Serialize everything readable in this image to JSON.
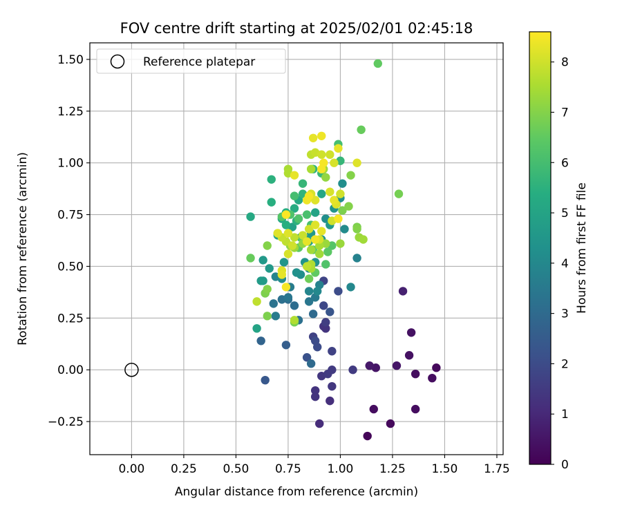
{
  "chart_data": {
    "type": "scatter",
    "title": "FOV centre drift starting at 2025/02/01 02:45:18",
    "xlabel": "Angular distance from reference (arcmin)",
    "ylabel": "Rotation from reference (arcmin)",
    "xlim": [
      -0.2,
      1.78
    ],
    "ylim": [
      -0.41,
      1.58
    ],
    "xticks": [
      0.0,
      0.25,
      0.5,
      0.75,
      1.0,
      1.25,
      1.5,
      1.75
    ],
    "xtick_labels": [
      "0.00",
      "0.25",
      "0.50",
      "0.75",
      "1.00",
      "1.25",
      "1.50",
      "1.75"
    ],
    "yticks": [
      -0.25,
      0.0,
      0.25,
      0.5,
      0.75,
      1.0,
      1.25,
      1.5
    ],
    "ytick_labels": [
      "−0.25",
      "0.00",
      "0.25",
      "0.50",
      "0.75",
      "1.00",
      "1.25",
      "1.50"
    ],
    "grid": true,
    "colormap": "viridis",
    "colorbar": {
      "label": "Hours from first FF file",
      "range": [
        0,
        8.6
      ],
      "ticks": [
        0,
        1,
        2,
        3,
        4,
        5,
        6,
        7,
        8
      ],
      "tick_labels": [
        "0",
        "1",
        "2",
        "3",
        "4",
        "5",
        "6",
        "7",
        "8"
      ]
    },
    "legend": {
      "location": "upper-left",
      "entries": [
        "Reference platepar"
      ]
    },
    "reference_point": {
      "x": 0.0,
      "y": 0.0,
      "marker": "open-circle",
      "label": "Reference platepar"
    },
    "series": [
      {
        "note_color": "points coloured by hours from first FF file",
        "points": [
          {
            "x": 1.13,
            "y": -0.32,
            "c": 0.1
          },
          {
            "x": 1.24,
            "y": -0.26,
            "c": 0.2
          },
          {
            "x": 1.16,
            "y": -0.19,
            "c": 0.3
          },
          {
            "x": 1.36,
            "y": -0.19,
            "c": 0.3
          },
          {
            "x": 1.46,
            "y": 0.01,
            "c": 0.2
          },
          {
            "x": 1.44,
            "y": -0.04,
            "c": 0.3
          },
          {
            "x": 1.36,
            "y": -0.02,
            "c": 0.3
          },
          {
            "x": 1.33,
            "y": 0.07,
            "c": 0.4
          },
          {
            "x": 1.34,
            "y": 0.18,
            "c": 0.4
          },
          {
            "x": 1.27,
            "y": 0.02,
            "c": 0.5
          },
          {
            "x": 1.17,
            "y": 0.01,
            "c": 0.5
          },
          {
            "x": 1.14,
            "y": 0.02,
            "c": 0.6
          },
          {
            "x": 1.3,
            "y": 0.38,
            "c": 0.8
          },
          {
            "x": 0.9,
            "y": -0.26,
            "c": 1.1
          },
          {
            "x": 0.95,
            "y": -0.15,
            "c": 1.2
          },
          {
            "x": 0.88,
            "y": -0.13,
            "c": 1.3
          },
          {
            "x": 0.88,
            "y": -0.1,
            "c": 1.3
          },
          {
            "x": 0.96,
            "y": -0.08,
            "c": 1.4
          },
          {
            "x": 0.91,
            "y": -0.03,
            "c": 1.4
          },
          {
            "x": 0.94,
            "y": -0.02,
            "c": 1.5
          },
          {
            "x": 0.96,
            "y": 0.0,
            "c": 1.5
          },
          {
            "x": 1.06,
            "y": 0.0,
            "c": 1.5
          },
          {
            "x": 0.93,
            "y": 0.2,
            "c": 1.3
          },
          {
            "x": 0.92,
            "y": 0.21,
            "c": 1.3
          },
          {
            "x": 0.93,
            "y": 0.23,
            "c": 1.6
          },
          {
            "x": 0.87,
            "y": 0.16,
            "c": 1.7
          },
          {
            "x": 0.96,
            "y": 0.09,
            "c": 1.7
          },
          {
            "x": 0.89,
            "y": 0.11,
            "c": 2.0
          },
          {
            "x": 0.88,
            "y": 0.14,
            "c": 2.0
          },
          {
            "x": 0.84,
            "y": 0.06,
            "c": 2.2
          },
          {
            "x": 0.92,
            "y": 0.31,
            "c": 1.9
          },
          {
            "x": 0.92,
            "y": 0.43,
            "c": 1.8
          },
          {
            "x": 0.99,
            "y": 0.38,
            "c": 2.0
          },
          {
            "x": 0.95,
            "y": 0.28,
            "c": 2.3
          },
          {
            "x": 0.64,
            "y": -0.05,
            "c": 2.4
          },
          {
            "x": 0.74,
            "y": 0.12,
            "c": 2.6
          },
          {
            "x": 0.62,
            "y": 0.14,
            "c": 2.8
          },
          {
            "x": 0.86,
            "y": 0.03,
            "c": 3.0
          },
          {
            "x": 0.87,
            "y": 0.27,
            "c": 3.0
          },
          {
            "x": 0.78,
            "y": 0.31,
            "c": 3.1
          },
          {
            "x": 0.75,
            "y": 0.34,
            "c": 3.1
          },
          {
            "x": 0.68,
            "y": 0.32,
            "c": 3.3
          },
          {
            "x": 0.72,
            "y": 0.34,
            "c": 3.2
          },
          {
            "x": 0.8,
            "y": 0.24,
            "c": 3.2
          },
          {
            "x": 0.75,
            "y": 0.35,
            "c": 3.4
          },
          {
            "x": 0.85,
            "y": 0.33,
            "c": 3.4
          },
          {
            "x": 0.88,
            "y": 0.35,
            "c": 3.5
          },
          {
            "x": 0.69,
            "y": 0.26,
            "c": 3.6
          },
          {
            "x": 0.76,
            "y": 0.4,
            "c": 3.6
          },
          {
            "x": 0.9,
            "y": 0.41,
            "c": 3.8
          },
          {
            "x": 1.05,
            "y": 0.4,
            "c": 4.0
          },
          {
            "x": 1.08,
            "y": 0.54,
            "c": 3.8
          },
          {
            "x": 0.85,
            "y": 0.38,
            "c": 3.9
          },
          {
            "x": 0.89,
            "y": 0.38,
            "c": 4.0
          },
          {
            "x": 0.69,
            "y": 0.45,
            "c": 3.9
          },
          {
            "x": 0.72,
            "y": 0.44,
            "c": 4.1
          },
          {
            "x": 0.81,
            "y": 0.46,
            "c": 4.2
          },
          {
            "x": 0.85,
            "y": 0.49,
            "c": 4.2
          },
          {
            "x": 0.79,
            "y": 0.47,
            "c": 4.3
          },
          {
            "x": 0.88,
            "y": 0.52,
            "c": 4.4
          },
          {
            "x": 0.83,
            "y": 0.52,
            "c": 4.4
          },
          {
            "x": 0.73,
            "y": 0.52,
            "c": 4.5
          },
          {
            "x": 0.66,
            "y": 0.49,
            "c": 4.6
          },
          {
            "x": 0.63,
            "y": 0.53,
            "c": 4.6
          },
          {
            "x": 0.62,
            "y": 0.43,
            "c": 4.7
          },
          {
            "x": 0.63,
            "y": 0.43,
            "c": 4.7
          },
          {
            "x": 0.64,
            "y": 0.37,
            "c": 4.8
          },
          {
            "x": 0.6,
            "y": 0.2,
            "c": 5.0
          },
          {
            "x": 0.57,
            "y": 0.74,
            "c": 5.2
          },
          {
            "x": 0.67,
            "y": 0.81,
            "c": 5.4
          },
          {
            "x": 0.67,
            "y": 0.92,
            "c": 5.5
          },
          {
            "x": 0.72,
            "y": 0.73,
            "c": 5.2
          },
          {
            "x": 0.7,
            "y": 0.65,
            "c": 5.0
          },
          {
            "x": 0.77,
            "y": 0.69,
            "c": 4.9
          },
          {
            "x": 0.81,
            "y": 0.64,
            "c": 4.8
          },
          {
            "x": 0.84,
            "y": 0.63,
            "c": 4.7
          },
          {
            "x": 0.86,
            "y": 0.66,
            "c": 4.6
          },
          {
            "x": 0.91,
            "y": 0.63,
            "c": 4.5
          },
          {
            "x": 0.95,
            "y": 0.7,
            "c": 4.6
          },
          {
            "x": 0.97,
            "y": 0.78,
            "c": 4.4
          },
          {
            "x": 1.0,
            "y": 0.83,
            "c": 4.3
          },
          {
            "x": 1.01,
            "y": 0.9,
            "c": 4.2
          },
          {
            "x": 1.02,
            "y": 0.68,
            "c": 4.1
          },
          {
            "x": 0.93,
            "y": 0.73,
            "c": 4.2
          },
          {
            "x": 0.85,
            "y": 0.62,
            "c": 4.9
          },
          {
            "x": 0.88,
            "y": 0.76,
            "c": 5.0
          },
          {
            "x": 0.91,
            "y": 0.85,
            "c": 5.1
          },
          {
            "x": 0.8,
            "y": 0.82,
            "c": 5.2
          },
          {
            "x": 0.78,
            "y": 0.78,
            "c": 5.3
          },
          {
            "x": 0.74,
            "y": 0.76,
            "c": 5.4
          },
          {
            "x": 0.74,
            "y": 0.7,
            "c": 5.4
          },
          {
            "x": 0.79,
            "y": 0.72,
            "c": 5.5
          },
          {
            "x": 0.82,
            "y": 0.85,
            "c": 5.6
          },
          {
            "x": 0.82,
            "y": 0.9,
            "c": 5.7
          },
          {
            "x": 0.87,
            "y": 0.97,
            "c": 5.6
          },
          {
            "x": 0.91,
            "y": 0.95,
            "c": 5.8
          },
          {
            "x": 1.0,
            "y": 1.01,
            "c": 5.7
          },
          {
            "x": 0.99,
            "y": 1.09,
            "c": 6.0
          },
          {
            "x": 0.78,
            "y": 0.84,
            "c": 6.0
          },
          {
            "x": 0.84,
            "y": 0.75,
            "c": 6.1
          },
          {
            "x": 0.86,
            "y": 0.7,
            "c": 6.1
          },
          {
            "x": 0.8,
            "y": 0.73,
            "c": 6.2
          },
          {
            "x": 0.76,
            "y": 0.75,
            "c": 6.2
          },
          {
            "x": 0.72,
            "y": 0.74,
            "c": 6.3
          },
          {
            "x": 0.8,
            "y": 0.59,
            "c": 6.4
          },
          {
            "x": 0.82,
            "y": 0.63,
            "c": 6.4
          },
          {
            "x": 0.87,
            "y": 0.58,
            "c": 6.5
          },
          {
            "x": 0.94,
            "y": 0.57,
            "c": 6.4
          },
          {
            "x": 0.96,
            "y": 0.6,
            "c": 6.3
          },
          {
            "x": 0.93,
            "y": 0.51,
            "c": 6.2
          },
          {
            "x": 0.88,
            "y": 0.47,
            "c": 6.5
          },
          {
            "x": 0.85,
            "y": 0.44,
            "c": 6.7
          },
          {
            "x": 0.78,
            "y": 0.23,
            "c": 6.8
          },
          {
            "x": 0.65,
            "y": 0.26,
            "c": 6.9
          },
          {
            "x": 0.64,
            "y": 0.37,
            "c": 6.9
          },
          {
            "x": 0.65,
            "y": 0.39,
            "c": 7.0
          },
          {
            "x": 0.57,
            "y": 0.54,
            "c": 6.6
          },
          {
            "x": 0.65,
            "y": 0.6,
            "c": 7.0
          },
          {
            "x": 0.7,
            "y": 0.66,
            "c": 7.1
          },
          {
            "x": 0.76,
            "y": 0.6,
            "c": 7.2
          },
          {
            "x": 0.78,
            "y": 0.59,
            "c": 7.3
          },
          {
            "x": 0.82,
            "y": 0.61,
            "c": 7.2
          },
          {
            "x": 0.86,
            "y": 0.58,
            "c": 7.4
          },
          {
            "x": 0.86,
            "y": 0.49,
            "c": 7.5
          },
          {
            "x": 0.9,
            "y": 0.56,
            "c": 7.4
          },
          {
            "x": 0.9,
            "y": 0.6,
            "c": 7.5
          },
          {
            "x": 0.93,
            "y": 0.61,
            "c": 7.3
          },
          {
            "x": 1.0,
            "y": 0.61,
            "c": 7.3
          },
          {
            "x": 1.04,
            "y": 0.79,
            "c": 7.0
          },
          {
            "x": 1.01,
            "y": 0.77,
            "c": 6.9
          },
          {
            "x": 1.08,
            "y": 0.69,
            "c": 6.9
          },
          {
            "x": 1.08,
            "y": 0.68,
            "c": 7.0
          },
          {
            "x": 1.09,
            "y": 0.64,
            "c": 7.3
          },
          {
            "x": 1.11,
            "y": 0.63,
            "c": 7.4
          },
          {
            "x": 1.05,
            "y": 0.94,
            "c": 7.0
          },
          {
            "x": 1.1,
            "y": 1.16,
            "c": 6.6
          },
          {
            "x": 1.18,
            "y": 1.48,
            "c": 6.5
          },
          {
            "x": 1.28,
            "y": 0.85,
            "c": 6.8
          },
          {
            "x": 0.93,
            "y": 0.93,
            "c": 7.2
          },
          {
            "x": 0.92,
            "y": 0.97,
            "c": 7.4
          },
          {
            "x": 0.86,
            "y": 0.97,
            "c": 7.5
          },
          {
            "x": 0.75,
            "y": 0.97,
            "c": 7.5
          },
          {
            "x": 0.75,
            "y": 0.95,
            "c": 7.6
          },
          {
            "x": 0.86,
            "y": 1.04,
            "c": 7.8
          },
          {
            "x": 0.88,
            "y": 1.05,
            "c": 7.9
          },
          {
            "x": 0.91,
            "y": 1.04,
            "c": 8.0
          },
          {
            "x": 0.95,
            "y": 1.04,
            "c": 8.0
          },
          {
            "x": 0.97,
            "y": 1.0,
            "c": 8.1
          },
          {
            "x": 0.99,
            "y": 1.07,
            "c": 8.3
          },
          {
            "x": 1.08,
            "y": 1.0,
            "c": 8.2
          },
          {
            "x": 0.87,
            "y": 1.12,
            "c": 8.3
          },
          {
            "x": 0.91,
            "y": 1.13,
            "c": 8.4
          },
          {
            "x": 0.92,
            "y": 1.0,
            "c": 8.5
          },
          {
            "x": 0.91,
            "y": 0.97,
            "c": 8.5
          },
          {
            "x": 0.78,
            "y": 0.94,
            "c": 8.3
          },
          {
            "x": 0.86,
            "y": 0.85,
            "c": 8.1
          },
          {
            "x": 0.88,
            "y": 0.82,
            "c": 8.2
          },
          {
            "x": 0.84,
            "y": 0.82,
            "c": 8.4
          },
          {
            "x": 0.85,
            "y": 0.84,
            "c": 8.5
          },
          {
            "x": 0.95,
            "y": 0.86,
            "c": 8.1
          },
          {
            "x": 0.97,
            "y": 0.82,
            "c": 8.3
          },
          {
            "x": 1.0,
            "y": 0.85,
            "c": 8.0
          },
          {
            "x": 0.98,
            "y": 0.8,
            "c": 8.2
          },
          {
            "x": 0.96,
            "y": 0.72,
            "c": 8.0
          },
          {
            "x": 0.99,
            "y": 0.73,
            "c": 8.5
          },
          {
            "x": 0.88,
            "y": 0.7,
            "c": 8.2
          },
          {
            "x": 0.91,
            "y": 0.67,
            "c": 8.3
          },
          {
            "x": 0.85,
            "y": 0.68,
            "c": 8.0
          },
          {
            "x": 0.82,
            "y": 0.65,
            "c": 7.9
          },
          {
            "x": 0.78,
            "y": 0.64,
            "c": 7.8
          },
          {
            "x": 0.75,
            "y": 0.66,
            "c": 8.2
          },
          {
            "x": 0.7,
            "y": 0.66,
            "c": 8.2
          },
          {
            "x": 0.72,
            "y": 0.64,
            "c": 7.9
          },
          {
            "x": 0.74,
            "y": 0.62,
            "c": 7.8
          },
          {
            "x": 0.75,
            "y": 0.56,
            "c": 8.1
          },
          {
            "x": 0.77,
            "y": 0.6,
            "c": 8.0
          },
          {
            "x": 0.84,
            "y": 0.62,
            "c": 8.3
          },
          {
            "x": 0.88,
            "y": 0.63,
            "c": 8.4
          },
          {
            "x": 0.9,
            "y": 0.63,
            "c": 8.1
          },
          {
            "x": 0.86,
            "y": 0.51,
            "c": 7.6
          },
          {
            "x": 0.84,
            "y": 0.5,
            "c": 7.8
          },
          {
            "x": 0.72,
            "y": 0.48,
            "c": 8.2
          },
          {
            "x": 0.72,
            "y": 0.46,
            "c": 8.3
          },
          {
            "x": 0.74,
            "y": 0.4,
            "c": 8.5
          },
          {
            "x": 0.6,
            "y": 0.33,
            "c": 7.8
          },
          {
            "x": 0.78,
            "y": 0.24,
            "c": 7.6
          },
          {
            "x": 0.74,
            "y": 0.75,
            "c": 8.6
          }
        ]
      }
    ]
  }
}
